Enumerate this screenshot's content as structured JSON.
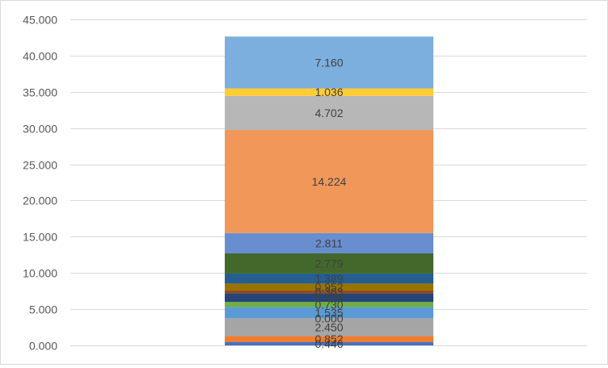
{
  "chart_data": {
    "type": "bar",
    "stacked": true,
    "title": "",
    "xlabel": "",
    "ylabel": "",
    "ylim": [
      0,
      45
    ],
    "y_ticks": [
      "0.000",
      "5.000",
      "10.000",
      "15.000",
      "20.000",
      "25.000",
      "30.000",
      "35.000",
      "40.000",
      "45.000"
    ],
    "grid": true,
    "legend": "none",
    "series": [
      {
        "value": 0.446,
        "label": "0.446",
        "color": "#4472c4"
      },
      {
        "value": 0.852,
        "label": "0.852",
        "color": "#ed7d31"
      },
      {
        "value": 2.45,
        "label": "2.450",
        "color": "#a5a5a5"
      },
      {
        "value": 0.0,
        "label": "0.000",
        "color": "#ffc000"
      },
      {
        "value": 1.535,
        "label": "1.535",
        "color": "#5b9bd5"
      },
      {
        "value": 0.73,
        "label": "0.730",
        "color": "#70ad47"
      },
      {
        "value": 1.203,
        "label": "1.203",
        "color": "#264478"
      },
      {
        "value": 0.363,
        "label": "0.363",
        "color": "#9e480e"
      },
      {
        "value": 0.952,
        "label": "0.952",
        "color": "#997300"
      },
      {
        "value": 1.389,
        "label": "1.389",
        "color": "#255e91"
      },
      {
        "value": 2.779,
        "label": "2.779",
        "color": "#43682b"
      },
      {
        "value": 2.811,
        "label": "2.811",
        "color": "#698ed0"
      },
      {
        "value": 14.224,
        "label": "14.224",
        "color": "#f1975a"
      },
      {
        "value": 4.702,
        "label": "4.702",
        "color": "#b7b7b7"
      },
      {
        "value": 1.036,
        "label": "1.036",
        "color": "#ffcd33"
      },
      {
        "value": 7.16,
        "label": "7.160",
        "color": "#7cafdd"
      }
    ]
  }
}
